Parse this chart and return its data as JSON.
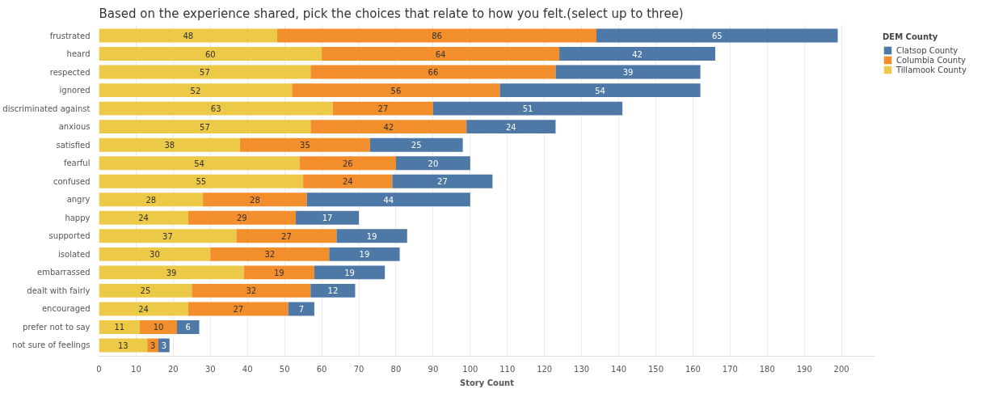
{
  "chart_data": {
    "type": "bar",
    "orientation": "horizontal",
    "stacked": true,
    "title": "Based on the experience shared, pick the choices that relate to how you felt.(select up to three)",
    "xlabel": "Story Count",
    "legend_title": "DEM County",
    "legend": "top right",
    "grid": "x",
    "data_labels": true,
    "categories": [
      "frustrated",
      "heard",
      "respected",
      "ignored",
      "discriminated against",
      "anxious",
      "satisfied",
      "fearful",
      "confused",
      "angry",
      "happy",
      "supported",
      "isolated",
      "embarrassed",
      "dealt with fairly",
      "encouraged",
      "prefer not to say",
      "not sure of feelings"
    ],
    "series": [
      {
        "name": "Tillamook County",
        "color": "#edc948",
        "values": [
          48,
          60,
          57,
          52,
          63,
          57,
          38,
          54,
          55,
          28,
          24,
          37,
          30,
          39,
          25,
          24,
          11,
          13
        ]
      },
      {
        "name": "Columbia County",
        "color": "#f28e2b",
        "values": [
          86,
          64,
          66,
          56,
          27,
          42,
          35,
          26,
          24,
          28,
          29,
          27,
          32,
          19,
          32,
          27,
          10,
          3
        ]
      },
      {
        "name": "Clatsop County",
        "color": "#4e79a7",
        "values": [
          65,
          42,
          39,
          54,
          51,
          24,
          25,
          20,
          27,
          44,
          17,
          19,
          19,
          19,
          12,
          7,
          6,
          3
        ]
      }
    ],
    "xlim": [
      0,
      209
    ],
    "xticks": [
      0,
      10,
      20,
      30,
      40,
      50,
      60,
      70,
      80,
      90,
      100,
      110,
      120,
      130,
      140,
      150,
      160,
      170,
      180,
      190,
      200
    ]
  }
}
